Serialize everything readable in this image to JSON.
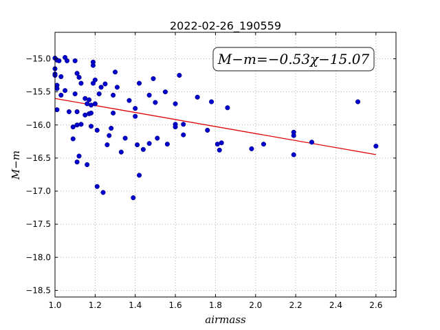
{
  "chart_data": {
    "type": "scatter",
    "title": "2022-02-26_190559",
    "xlabel": "airmass",
    "ylabel": "M−m",
    "xlim": [
      1.0,
      2.7
    ],
    "ylim": [
      -18.6,
      -14.6
    ],
    "y_inverted": true,
    "grid": true,
    "xticks": [
      "1.0",
      "1.2",
      "1.4",
      "1.6",
      "1.8",
      "2.0",
      "2.2",
      "2.4",
      "2.6"
    ],
    "yticks": [
      "−15.0",
      "−15.5",
      "−16.0",
      "−16.5",
      "−17.0",
      "−17.5",
      "−18.0",
      "−18.5"
    ],
    "annotation": "M−m=−0.53χ−15.07",
    "fit": {
      "slope": -0.53,
      "intercept": -15.07,
      "x_range": [
        1.0,
        2.6
      ],
      "color": "#e00000"
    },
    "point_color": "#0000cc",
    "points": [
      [
        1.0,
        -14.99
      ],
      [
        1.0,
        -15.15
      ],
      [
        1.0,
        -15.23
      ],
      [
        1.0,
        -15.25
      ],
      [
        1.01,
        -15.02
      ],
      [
        1.01,
        -15.4
      ],
      [
        1.01,
        -15.45
      ],
      [
        1.01,
        -15.77
      ],
      [
        1.02,
        -15.03
      ],
      [
        1.03,
        -15.55
      ],
      [
        1.03,
        -15.27
      ],
      [
        1.05,
        -14.98
      ],
      [
        1.05,
        -15.48
      ],
      [
        1.06,
        -15.03
      ],
      [
        1.07,
        -15.8
      ],
      [
        1.09,
        -16.21
      ],
      [
        1.09,
        -16.03
      ],
      [
        1.1,
        -15.03
      ],
      [
        1.1,
        -15.53
      ],
      [
        1.11,
        -15.22
      ],
      [
        1.11,
        -16.0
      ],
      [
        1.11,
        -15.8
      ],
      [
        1.11,
        -16.56
      ],
      [
        1.12,
        -15.28
      ],
      [
        1.12,
        -16.47
      ],
      [
        1.13,
        -15.37
      ],
      [
        1.13,
        -15.99
      ],
      [
        1.15,
        -15.6
      ],
      [
        1.15,
        -15.85
      ],
      [
        1.16,
        -16.6
      ],
      [
        1.16,
        -15.68
      ],
      [
        1.17,
        -15.83
      ],
      [
        1.17,
        -15.62
      ],
      [
        1.18,
        -15.82
      ],
      [
        1.18,
        -15.7
      ],
      [
        1.18,
        -16.02
      ],
      [
        1.19,
        -15.05
      ],
      [
        1.19,
        -15.1
      ],
      [
        1.19,
        -15.37
      ],
      [
        1.2,
        -15.32
      ],
      [
        1.2,
        -15.68
      ],
      [
        1.21,
        -16.08
      ],
      [
        1.21,
        -16.93
      ],
      [
        1.22,
        -15.53
      ],
      [
        1.23,
        -15.43
      ],
      [
        1.24,
        -17.02
      ],
      [
        1.25,
        -15.38
      ],
      [
        1.26,
        -16.3
      ],
      [
        1.27,
        -16.16
      ],
      [
        1.28,
        -16.05
      ],
      [
        1.29,
        -15.82
      ],
      [
        1.29,
        -15.55
      ],
      [
        1.3,
        -15.2
      ],
      [
        1.31,
        -15.43
      ],
      [
        1.33,
        -16.41
      ],
      [
        1.35,
        -16.2
      ],
      [
        1.37,
        -15.63
      ],
      [
        1.39,
        -17.1
      ],
      [
        1.4,
        -15.75
      ],
      [
        1.4,
        -15.87
      ],
      [
        1.41,
        -16.3
      ],
      [
        1.42,
        -15.37
      ],
      [
        1.42,
        -16.76
      ],
      [
        1.44,
        -16.37
      ],
      [
        1.47,
        -15.55
      ],
      [
        1.47,
        -16.28
      ],
      [
        1.49,
        -15.3
      ],
      [
        1.5,
        -15.66
      ],
      [
        1.51,
        -16.2
      ],
      [
        1.55,
        -15.5
      ],
      [
        1.56,
        -16.29
      ],
      [
        1.6,
        -15.68
      ],
      [
        1.6,
        -15.99
      ],
      [
        1.6,
        -16.03
      ],
      [
        1.62,
        -15.25
      ],
      [
        1.64,
        -15.99
      ],
      [
        1.64,
        -16.15
      ],
      [
        1.71,
        -15.58
      ],
      [
        1.76,
        -16.08
      ],
      [
        1.78,
        -15.65
      ],
      [
        1.81,
        -16.29
      ],
      [
        1.82,
        -16.38
      ],
      [
        1.83,
        -16.27
      ],
      [
        1.86,
        -15.74
      ],
      [
        1.98,
        -16.36
      ],
      [
        2.04,
        -16.29
      ],
      [
        2.19,
        -16.11
      ],
      [
        2.19,
        -16.16
      ],
      [
        2.19,
        -16.45
      ],
      [
        2.28,
        -16.26
      ],
      [
        2.51,
        -15.65
      ],
      [
        2.6,
        -16.32
      ]
    ]
  }
}
